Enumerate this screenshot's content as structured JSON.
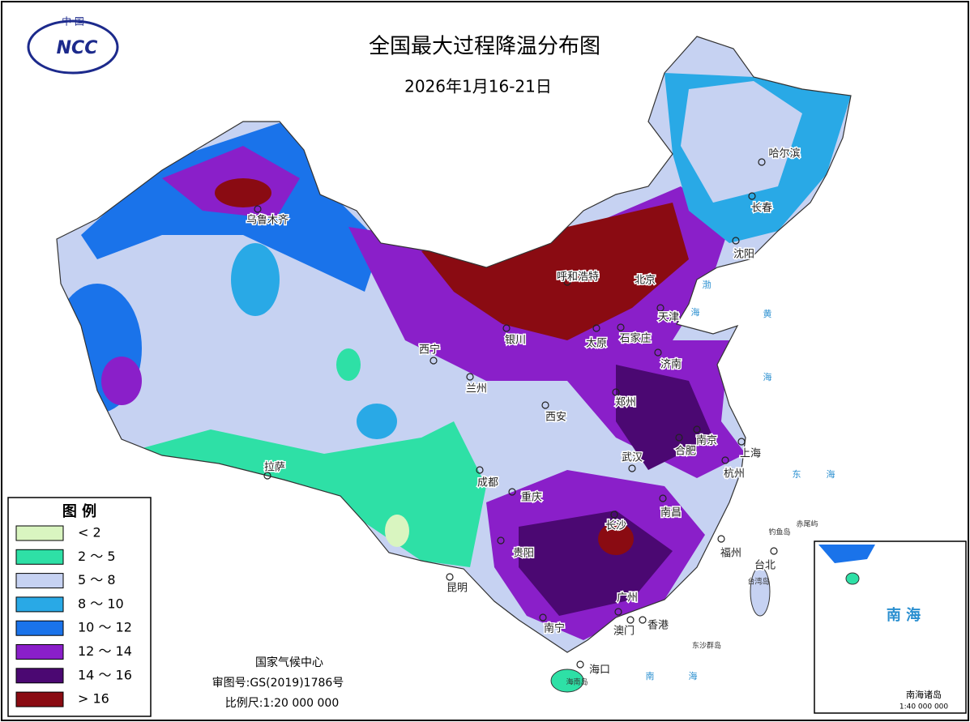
{
  "header": {
    "logo_top": "中 国",
    "logo": "NCC",
    "title": "全国最大过程降温分布图",
    "subtitle": "2026年1月16-21日"
  },
  "legend": {
    "title": "图 例",
    "items": [
      {
        "label": "< 2",
        "color": "#d9f5c0"
      },
      {
        "label": "2 ～ 5",
        "color": "#2ee0a6"
      },
      {
        "label": "5 ～ 8",
        "color": "#c6d2f2"
      },
      {
        "label": "8 ～ 10",
        "color": "#29a9e6"
      },
      {
        "label": "10 ～ 12",
        "color": "#1a73ea"
      },
      {
        "label": "12 ～ 14",
        "color": "#8a1fc9"
      },
      {
        "label": "14 ～ 16",
        "color": "#4b0872"
      },
      {
        "label": "> 16",
        "color": "#8a0b12"
      }
    ]
  },
  "cities": [
    "乌鲁木齐",
    "呼和浩特",
    "北京",
    "天津",
    "石家庄",
    "太原",
    "银川",
    "西宁",
    "兰州",
    "西安",
    "济南",
    "郑州",
    "南京",
    "合肥",
    "上海",
    "杭州",
    "武汉",
    "成都",
    "重庆",
    "拉萨",
    "长沙",
    "南昌",
    "贵阳",
    "昆明",
    "南宁",
    "广州",
    "澳门",
    "香港",
    "福州",
    "台北",
    "海口",
    "哈尔滨",
    "长春",
    "沈阳"
  ],
  "seas": [
    "渤",
    "海",
    "黄",
    "海",
    "东",
    "海",
    "南",
    "海"
  ],
  "places": [
    "钓鱼岛",
    "赤尾屿",
    "台湾岛",
    "东沙群岛",
    "海南岛"
  ],
  "footer": {
    "org": "国家气候中心",
    "review": "审图号:GS(2019)1786号",
    "scale": "比例尺:1:20 000 000"
  },
  "inset": {
    "sea": "南 海",
    "label": "南海诸岛",
    "scale": "1:40 000 000"
  }
}
